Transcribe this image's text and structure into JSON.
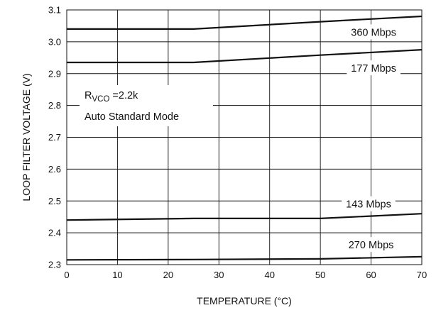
{
  "chart_data": {
    "type": "line",
    "title": "",
    "xlabel": "TEMPERATURE (°C)",
    "ylabel": "LOOP FILTER VOLTAGE (V)",
    "xlim": [
      0,
      70
    ],
    "ylim": [
      2.3,
      3.1
    ],
    "xticks": [
      "0",
      "10",
      "20",
      "30",
      "40",
      "50",
      "60",
      "70"
    ],
    "yticks": [
      "2.3",
      "2.4",
      "2.5",
      "2.6",
      "2.7",
      "2.8",
      "2.9",
      "3.0",
      "3.1"
    ],
    "grid": true,
    "annotation": {
      "r_main": "R",
      "r_sub": "VCO",
      "r_value": " =2.2k",
      "mode": "Auto Standard Mode"
    },
    "series": [
      {
        "name": "360 Mbps",
        "x": [
          0,
          25,
          50,
          70
        ],
        "y": [
          3.04,
          3.04,
          3.063,
          3.08
        ]
      },
      {
        "name": "177 Mbps",
        "x": [
          0,
          25,
          50,
          70
        ],
        "y": [
          2.935,
          2.935,
          2.958,
          2.975
        ]
      },
      {
        "name": "143 Mbps",
        "x": [
          0,
          25,
          50,
          70
        ],
        "y": [
          2.44,
          2.445,
          2.445,
          2.46
        ]
      },
      {
        "name": "270 Mbps",
        "x": [
          0,
          25,
          50,
          70
        ],
        "y": [
          2.315,
          2.316,
          2.318,
          2.325
        ]
      }
    ],
    "colors": {
      "line": "#111111",
      "grid": "#111111",
      "background": "#ffffff"
    }
  }
}
